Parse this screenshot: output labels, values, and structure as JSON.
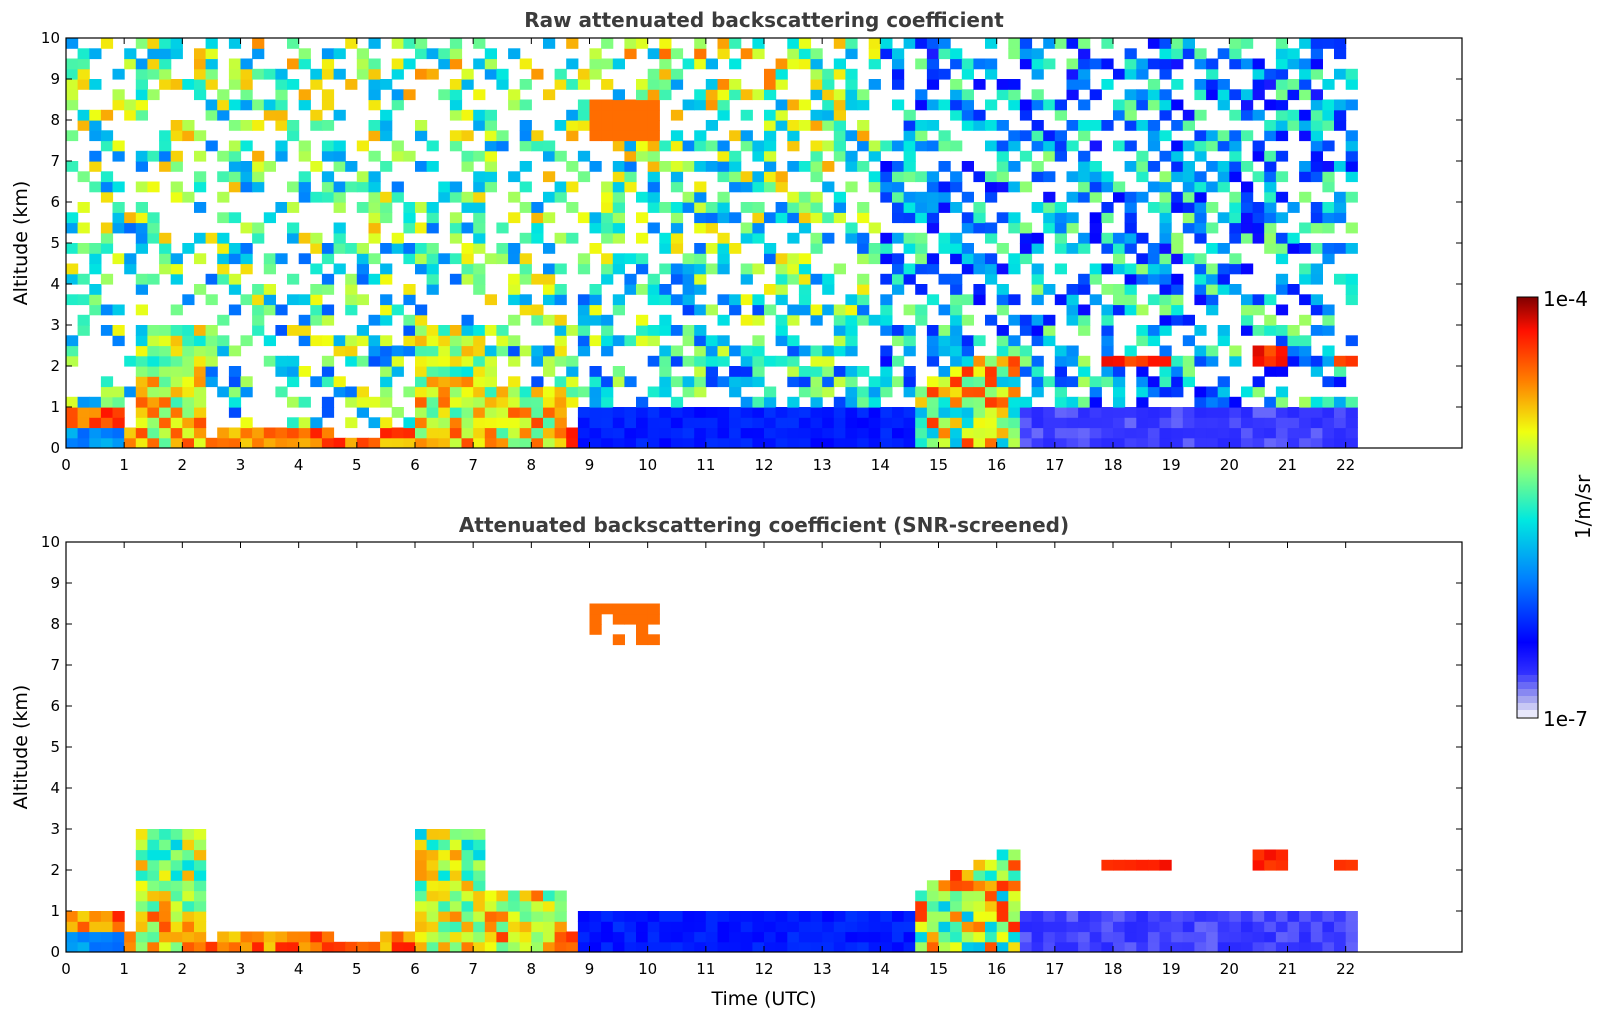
{
  "chart_data": [
    {
      "type": "heatmap",
      "title": "Raw attenuated backscattering coefficient",
      "ylabel": "Altitude (km)",
      "xlabel": "",
      "xlim": [
        0,
        24
      ],
      "ylim": [
        0,
        10
      ],
      "x_ticks": [
        "0",
        "1",
        "2",
        "3",
        "4",
        "5",
        "6",
        "7",
        "8",
        "9",
        "10",
        "11",
        "12",
        "13",
        "14",
        "15",
        "16",
        "17",
        "18",
        "19",
        "20",
        "21",
        "22"
      ],
      "y_ticks": [
        "0",
        "1",
        "2",
        "3",
        "4",
        "5",
        "6",
        "7",
        "8",
        "9",
        "10"
      ],
      "data_end_time": 22.2,
      "screened": false,
      "features": [
        {
          "kind": "boundary_layer",
          "t0": 0,
          "t1": 8.8,
          "top_km": 0.5
        },
        {
          "kind": "convective_plumes",
          "t0": 1.2,
          "t1": 2.4,
          "top_km": 3.0
        },
        {
          "kind": "convective_plumes",
          "t0": 6.0,
          "t1": 8.8,
          "top_km": 3.0
        },
        {
          "kind": "cirrus",
          "t0": 9.0,
          "t1": 10.2,
          "top_km": 8.5,
          "base_km": 7.5
        },
        {
          "kind": "cloud_layer",
          "t0": 14.6,
          "t1": 16.4,
          "top_km": 2.7
        },
        {
          "kind": "cloud",
          "t0": 17.8,
          "t1": 19.0,
          "alt_km": 2.1
        },
        {
          "kind": "cloud",
          "t0": 20.3,
          "t1": 21.0,
          "alt_km": 2.3
        },
        {
          "kind": "cloud",
          "t0": 21.8,
          "t1": 22.2,
          "alt_km": 2.1
        }
      ]
    },
    {
      "type": "heatmap",
      "title": "Attenuated backscattering coefficient (SNR-screened)",
      "ylabel": "Altitude (km)",
      "xlabel": "Time (UTC)",
      "xlim": [
        0,
        24
      ],
      "ylim": [
        0,
        10
      ],
      "x_ticks": [
        "0",
        "1",
        "2",
        "3",
        "4",
        "5",
        "6",
        "7",
        "8",
        "9",
        "10",
        "11",
        "12",
        "13",
        "14",
        "15",
        "16",
        "17",
        "18",
        "19",
        "20",
        "21",
        "22"
      ],
      "y_ticks": [
        "0",
        "1",
        "2",
        "3",
        "4",
        "5",
        "6",
        "7",
        "8",
        "9",
        "10"
      ],
      "data_end_time": 22.2,
      "screened": true
    }
  ],
  "colorbar": {
    "label": "1/m/sr",
    "min_label": "1e-7",
    "max_label": "1e-4",
    "scale": "log",
    "colormap": "jet"
  }
}
